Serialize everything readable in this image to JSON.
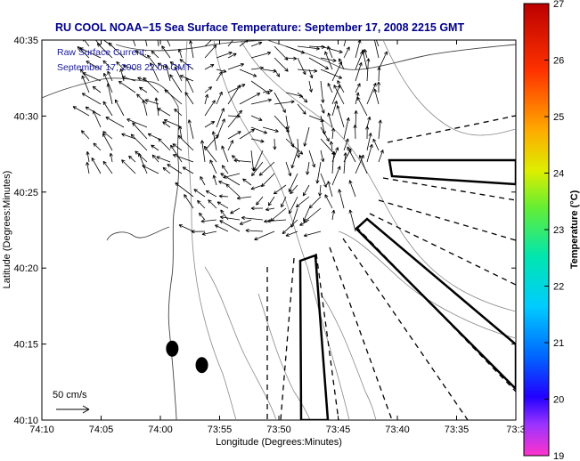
{
  "chart_data": {
    "type": "map",
    "title": "RU COOL  NOAA−15  Sea Surface Temperature:  September 17, 2008 2215 GMT",
    "xlabel": "Longitude (Degrees:Minutes)",
    "ylabel": "Latitude (Degrees:Minutes)",
    "x_ticks": [
      "74:10",
      "74:05",
      "74:00",
      "73:55",
      "73:50",
      "73:45",
      "73:40",
      "73:35",
      "73:3"
    ],
    "y_ticks": [
      "40:35",
      "40:30",
      "40:25",
      "40:20",
      "40:15",
      "40:10"
    ],
    "xlim": [
      -74.1667,
      -73.5
    ],
    "ylim": [
      40.1667,
      40.5833
    ],
    "annotation_line1": "Raw Surface Current:",
    "annotation_line2": "September 17, 2008 22:00 GMT",
    "scale_label": "50 cm/s",
    "colorbar": {
      "label": "Temperature (°C)",
      "ticks": [
        "27",
        "26",
        "25",
        "24",
        "23",
        "22",
        "21",
        "20",
        "19"
      ],
      "min": 19,
      "max": 27
    },
    "markers": [
      {
        "lon": -73.9833,
        "lat": 40.245
      },
      {
        "lon": -73.9417,
        "lat": 40.227
      }
    ]
  }
}
